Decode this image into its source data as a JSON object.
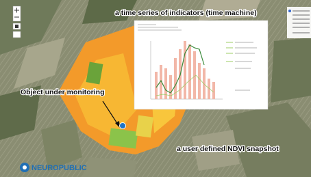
{
  "annotations": {
    "time_series": "a time series of indicators (time machine)",
    "object": "Object under monitoring",
    "snapshot": "a user defined NDVI snapshot"
  },
  "logo": "NEUROPUBLIC"
}
